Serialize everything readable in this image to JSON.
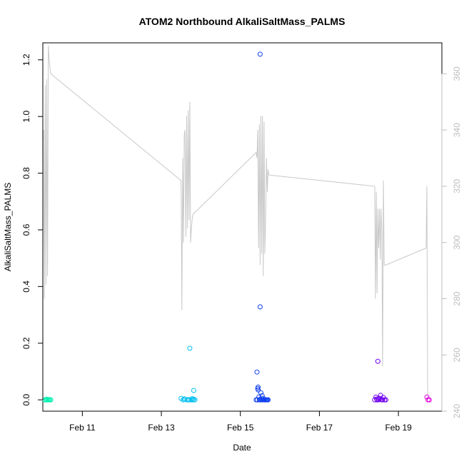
{
  "chart_data": {
    "type": "scatter",
    "title": "ATOM2 Northbound AlkaliSaltMass_PALMS",
    "xlabel": "Date",
    "ylabel": "AlkaliSaltMass_PALMS",
    "xlim": [
      10.0,
      20.1
    ],
    "ylim": [
      -0.04,
      1.26
    ],
    "y2lim": [
      240,
      371
    ],
    "x_ticks": [
      {
        "value": 11,
        "label": "Feb 11"
      },
      {
        "value": 13,
        "label": "Feb 13"
      },
      {
        "value": 15,
        "label": "Feb 15"
      },
      {
        "value": 17,
        "label": "Feb 17"
      },
      {
        "value": 19,
        "label": "Feb 19"
      }
    ],
    "y_ticks": [
      {
        "value": 0.0,
        "label": "0.0"
      },
      {
        "value": 0.2,
        "label": "0.2"
      },
      {
        "value": 0.4,
        "label": "0.4"
      },
      {
        "value": 0.6,
        "label": "0.6"
      },
      {
        "value": 0.8,
        "label": "0.8"
      },
      {
        "value": 1.0,
        "label": "1.0"
      },
      {
        "value": 1.2,
        "label": "1.2"
      }
    ],
    "y2_ticks": [
      {
        "value": 240,
        "label": "240"
      },
      {
        "value": 260,
        "label": "260"
      },
      {
        "value": 280,
        "label": "280"
      },
      {
        "value": 300,
        "label": "300"
      },
      {
        "value": 320,
        "label": "320"
      },
      {
        "value": 340,
        "label": "340"
      },
      {
        "value": 360,
        "label": "360"
      }
    ],
    "colors": {
      "line": "#c8c8c8",
      "right_axis": "#bdbdbd",
      "points_feb10": "#00f0b0",
      "points_feb13": "#00c0f0",
      "points_feb15": "#1040f0",
      "points_feb18": "#7000f0",
      "points_feb19": "#e000e0"
    },
    "series": [
      {
        "kind": "points",
        "color": "#00f0b0",
        "x": [
          10.05,
          10.08,
          10.11,
          10.14,
          10.17,
          10.2,
          10.1,
          10.16
        ],
        "y": [
          0.0,
          0.0,
          0.0,
          0.0,
          0.0,
          0.0,
          0.002,
          0.001
        ]
      },
      {
        "kind": "points",
        "color": "#00c0f0",
        "x": [
          13.5,
          13.55,
          13.6,
          13.65,
          13.7,
          13.72,
          13.75,
          13.78,
          13.8,
          13.82,
          13.85,
          13.58,
          13.68,
          13.75,
          13.82
        ],
        "y": [
          0.005,
          0.0,
          0.002,
          0.0,
          0.0,
          0.182,
          0.0,
          0.004,
          0.0,
          0.033,
          0.0,
          0.003,
          0.001,
          0.0,
          0.002
        ]
      },
      {
        "kind": "points",
        "color": "#1040f0",
        "x": [
          15.4,
          15.42,
          15.44,
          15.45,
          15.47,
          15.48,
          15.5,
          15.5,
          15.52,
          15.53,
          15.55,
          15.57,
          15.58,
          15.6,
          15.62,
          15.64,
          15.66,
          15.68,
          15.7,
          15.45,
          15.5,
          15.55,
          15.43
        ],
        "y": [
          0.0,
          0.098,
          0.04,
          0.045,
          0.01,
          0.0,
          1.22,
          0.328,
          0.025,
          0.0,
          0.015,
          0.0,
          0.005,
          0.0,
          0.0,
          0.0,
          0.0,
          0.0,
          0.0,
          0.035,
          0.002,
          0.0,
          0.0
        ]
      },
      {
        "kind": "points",
        "color": "#7000f0",
        "x": [
          18.4,
          18.43,
          18.46,
          18.48,
          18.5,
          18.52,
          18.55,
          18.58,
          18.6,
          18.62,
          18.65,
          18.68,
          18.45,
          18.55
        ],
        "y": [
          0.0,
          0.01,
          0.0,
          0.136,
          0.0,
          0.005,
          0.016,
          0.0,
          0.0,
          0.008,
          0.0,
          0.0,
          0.003,
          0.002
        ]
      },
      {
        "kind": "points",
        "color": "#e000e0",
        "x": [
          19.72,
          19.75,
          19.78
        ],
        "y": [
          0.01,
          0.0,
          0.0
        ]
      },
      {
        "kind": "line",
        "axis": "right",
        "color": "#c8c8c8",
        "x": [
          10.0,
          10.02,
          10.04,
          10.06,
          10.08,
          10.1,
          10.12,
          10.14,
          10.16,
          10.18,
          10.2,
          13.5,
          13.52,
          13.54,
          13.56,
          13.58,
          13.6,
          13.62,
          13.64,
          13.66,
          13.68,
          13.7,
          13.72,
          13.74,
          13.76,
          13.78,
          13.8,
          15.4,
          15.42,
          15.44,
          15.46,
          15.48,
          15.5,
          15.52,
          15.54,
          15.56,
          15.58,
          15.6,
          15.62,
          15.64,
          15.66,
          15.68,
          15.7,
          15.72,
          18.4,
          18.42,
          18.44,
          18.46,
          18.48,
          18.5,
          18.52,
          18.54,
          18.56,
          18.58,
          18.6,
          18.62,
          18.64,
          18.66,
          18.68,
          19.7,
          19.72,
          19.74
        ],
        "y": [
          336,
          340,
          280,
          356,
          285,
          358,
          288,
          370,
          365,
          362,
          360,
          322,
          276,
          330,
          300,
          338,
          340,
          302,
          345,
          305,
          347,
          308,
          350,
          300,
          305,
          308,
          310,
          332,
          330,
          340,
          298,
          342,
          292,
          345,
          296,
          345,
          288,
          343,
          296,
          310,
          330,
          318,
          326,
          324,
          320,
          280,
          318,
          282,
          312,
          298,
          312,
          294,
          312,
          304,
          256,
          322,
          292,
          292,
          292,
          298,
          320,
          244
        ]
      }
    ]
  }
}
